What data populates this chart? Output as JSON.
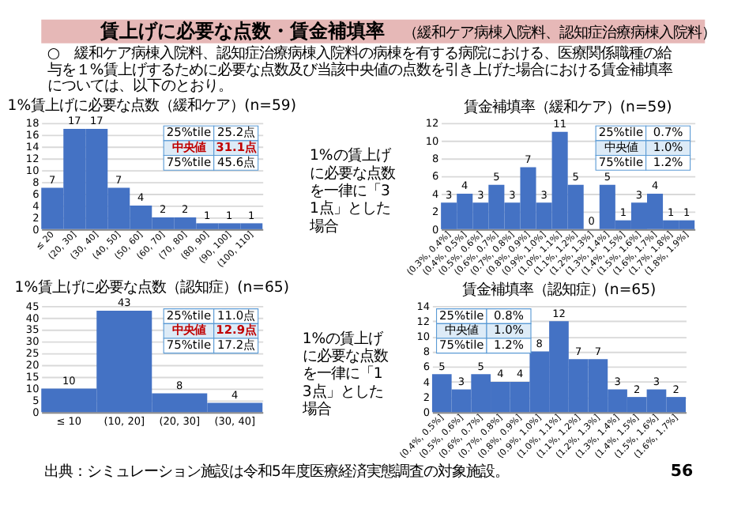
{
  "chart_data": [
    {
      "type": "other",
      "title": "賃上げに必要な点数・賃金補填率",
      "subtitle": "（緩和ケア病棟入院料、認知症治療病棟入院料）",
      "annotations": [
        "○　緩和ケア病棟入院料、認知症治療病棟入院料の病棟を有する病院における、医療関係職種の給与を１%賃上げするために必要な点数及び当該中央値の点数を引き上げた場合における賃金補填率については、以下のとおり。",
        "出典：シミュレーション施設は令和5年度医療経済実態調査の対象施設。",
        "56"
      ]
    },
    {
      "type": "bar",
      "title": "1%賃上げに必要な点数（緩和ケア）(n=59)",
      "categories": [
        "≤ 20",
        "(20, 30]",
        "(30, 40]",
        "(40, 50]",
        "(50, 60]",
        "(60, 70]",
        "(70, 80]",
        "(80, 90]",
        "(90, 100]",
        "(100, 110]"
      ],
      "values": [
        7,
        17,
        17,
        7,
        4,
        2,
        2,
        1,
        1,
        1
      ],
      "color": "#4472c4",
      "ylim": [
        0,
        18
      ],
      "yticks": [
        0,
        2,
        4,
        6,
        8,
        10,
        12,
        14,
        16,
        18
      ],
      "grid": "y",
      "data_labels": true,
      "annotations": [
        "25%tile",
        "25.2点",
        "中央値",
        "31.1点",
        "75%tile",
        "45.6点",
        "1%の賃上げに必要な点数を一律に「31点」とした場合"
      ]
    },
    {
      "type": "bar",
      "title": "賃金補填率（緩和ケア）(n=59)",
      "categories": [
        "(0.3%, 0.4%]",
        "(0.4%, 0.5%]",
        "(0.5%, 0.6%]",
        "(0.6%, 0.7%]",
        "(0.7%, 0.8%]",
        "(0.8%, 0.9%]",
        "(0.9%, 1.0%]",
        "(1.0%, 1.1%]",
        "(1.1%, 1.2%]",
        "(1.2%, 1.3%]",
        "(1.3%, 1.4%]",
        "(1.4%, 1.5%]",
        "(1.5%, 1.6%]",
        "(1.6%, 1.7%]",
        "(1.7%, 1.8%]",
        "(1.8%, 1.9%]"
      ],
      "values": [
        3,
        4,
        3,
        5,
        3,
        7,
        3,
        11,
        5,
        0,
        5,
        1,
        3,
        4,
        1,
        1
      ],
      "color": "#4472c4",
      "ylim": [
        0,
        12
      ],
      "yticks": [
        0,
        2,
        4,
        6,
        8,
        10,
        12
      ],
      "grid": "y",
      "data_labels": true,
      "annotations": [
        "25%tile",
        "0.7%",
        "中央値",
        "1.0%",
        "75%tile",
        "1.2%"
      ]
    },
    {
      "type": "bar",
      "title": "1%賃上げに必要な点数（認知症）(n=65)",
      "categories": [
        "≤ 10",
        "(10, 20]",
        "(20, 30]",
        "(30, 40]"
      ],
      "values": [
        10,
        43,
        8,
        4
      ],
      "color": "#4472c4",
      "ylim": [
        0,
        45
      ],
      "yticks": [
        0,
        5,
        10,
        15,
        20,
        25,
        30,
        35,
        40,
        45
      ],
      "grid": "y",
      "data_labels": true,
      "annotations": [
        "25%tile",
        "11.0点",
        "中央値",
        "12.9点",
        "75%tile",
        "17.2点",
        "1%の賃上げに必要な点数を一律に「13点」とした場合"
      ]
    },
    {
      "type": "bar",
      "title": "賃金補填率（認知症）(n=65)",
      "categories": [
        "(0.4%, 0.5%]",
        "(0.5%, 0.6%]",
        "(0.6%, 0.7%]",
        "(0.7%, 0.8%]",
        "(0.8%, 0.9%]",
        "(0.9%, 1.0%]",
        "(1.0%, 1.1%]",
        "(1.1%, 1.2%]",
        "(1.2%, 1.3%]",
        "(1.3%, 1.4%]",
        "(1.4%, 1.5%]",
        "(1.5%, 1.6%]",
        "(1.6%, 1.7%]"
      ],
      "values": [
        5,
        3,
        5,
        4,
        4,
        8,
        12,
        7,
        7,
        3,
        2,
        3,
        2
      ],
      "color": "#4472c4",
      "ylim": [
        0,
        14
      ],
      "yticks": [
        0,
        2,
        4,
        6,
        8,
        10,
        12,
        14
      ],
      "grid": "y",
      "data_labels": true,
      "annotations": [
        "25%tile",
        "0.8%",
        "中央値",
        "1.0%",
        "75%tile",
        "1.2%"
      ]
    }
  ]
}
